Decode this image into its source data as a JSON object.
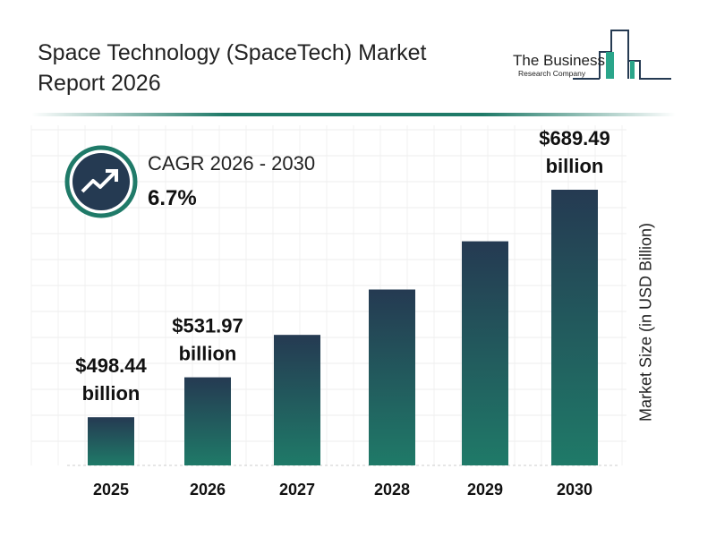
{
  "header": {
    "title": "Space Technology (SpaceTech) Market Report 2026"
  },
  "logo": {
    "line1": "The Business",
    "line2": "Research Company"
  },
  "cagr": {
    "label": "CAGR 2026 - 2030",
    "value": "6.7%",
    "icon": "trend-up-arrow-icon"
  },
  "colors": {
    "bar_top": "#253a52",
    "bar_bottom": "#1f7a68",
    "accent": "#1f7a68"
  },
  "chart_data": {
    "type": "bar",
    "categories": [
      "2025",
      "2026",
      "2027",
      "2028",
      "2029",
      "2030"
    ],
    "values": [
      498.44,
      531.97,
      567.6,
      605.7,
      646.2,
      689.49
    ],
    "data_labels": [
      "$498.44 billion",
      "$531.97 billion",
      "",
      "",
      "",
      "$689.49 billion"
    ],
    "title": "",
    "xlabel": "",
    "ylabel": "Market Size (in USD Billion)",
    "grid": true,
    "legend": "none"
  }
}
